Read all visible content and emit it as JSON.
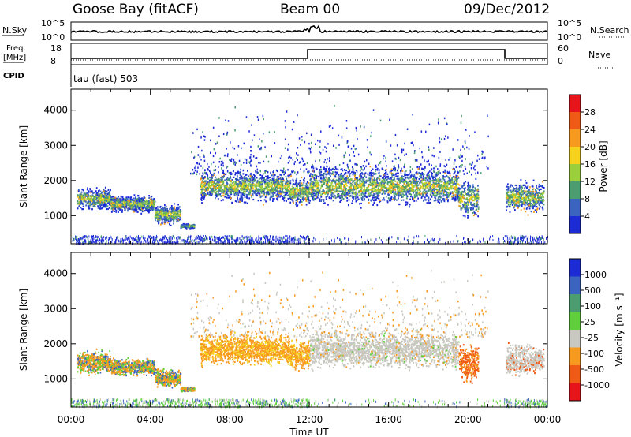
{
  "header": {
    "station": "Goose Bay (fitACF)",
    "beam": "Beam 00",
    "date": "09/Dec/2012"
  },
  "top_panels": {
    "nsky_label": "N.Sky",
    "nsky_ticks": [
      "10^5",
      "10^0"
    ],
    "nsearch_label": "N.Search",
    "nsearch_ticks": [
      "10^5",
      "10^0"
    ],
    "freq_label": "Freq.",
    "freq_unit": "[MHz]",
    "freq_ticks": [
      "18",
      "8"
    ],
    "nave_label": "Nave",
    "nave_ticks": [
      "60",
      "0"
    ],
    "cpid_label": "CPID",
    "cpid_value": "tau (fast) 503"
  },
  "chart_data": [
    {
      "type": "heatmap",
      "name": "power",
      "ylabel": "Slant Range [km]",
      "ylim": [
        200,
        4600
      ],
      "yticks": [
        1000,
        2000,
        3000,
        4000
      ],
      "xlim": [
        0,
        24
      ],
      "colorbar": {
        "label": "Power [dB]",
        "ticks": [
          "28",
          "24",
          "20",
          "16",
          "12",
          "8",
          "4"
        ],
        "colors": [
          "#e8141c",
          "#f05a14",
          "#f79a1e",
          "#f6d21c",
          "#9ccf3c",
          "#4b9d70",
          "#3a64c0",
          "#1c2bd6"
        ]
      },
      "echo_bands": [
        {
          "t0": 0.3,
          "t1": 2.0,
          "r_lo": 1100,
          "r_hi": 1900
        },
        {
          "t0": 2.0,
          "t1": 4.2,
          "r_lo": 1050,
          "r_hi": 1650
        },
        {
          "t0": 4.2,
          "t1": 5.5,
          "r_lo": 700,
          "r_hi": 1400
        },
        {
          "t0": 5.5,
          "t1": 6.2,
          "r_lo": 650,
          "r_hi": 800
        },
        {
          "t0": 6.5,
          "t1": 11.0,
          "r_lo": 1300,
          "r_hi": 2400
        },
        {
          "t0": 11.0,
          "t1": 12.0,
          "r_lo": 1200,
          "r_hi": 2200
        },
        {
          "t0": 12.0,
          "t1": 19.5,
          "r_lo": 1200,
          "r_hi": 2500
        },
        {
          "t0": 19.5,
          "t1": 20.5,
          "r_lo": 800,
          "r_hi": 2200
        },
        {
          "t0": 21.9,
          "t1": 23.8,
          "r_lo": 1000,
          "r_hi": 2100
        }
      ]
    },
    {
      "type": "heatmap",
      "name": "velocity",
      "ylabel": "Slant Range [km]",
      "xlabel": "Time UT",
      "ylim": [
        200,
        4600
      ],
      "yticks": [
        1000,
        2000,
        3000,
        4000
      ],
      "xlim": [
        0,
        24
      ],
      "xticks": [
        "00:00",
        "04:00",
        "08:00",
        "12:00",
        "16:00",
        "20:00",
        "00:00"
      ],
      "colorbar": {
        "label": "Velocity [m s⁻¹]",
        "ticks": [
          "1000",
          "500",
          "100",
          "25",
          "-25",
          "-100",
          "-500",
          "-1000"
        ],
        "colors": [
          "#1c2bd6",
          "#3a64c0",
          "#4b9d70",
          "#5fd03c",
          "#c8c8c0",
          "#f79a1e",
          "#f05a14",
          "#e8141c"
        ]
      }
    }
  ]
}
